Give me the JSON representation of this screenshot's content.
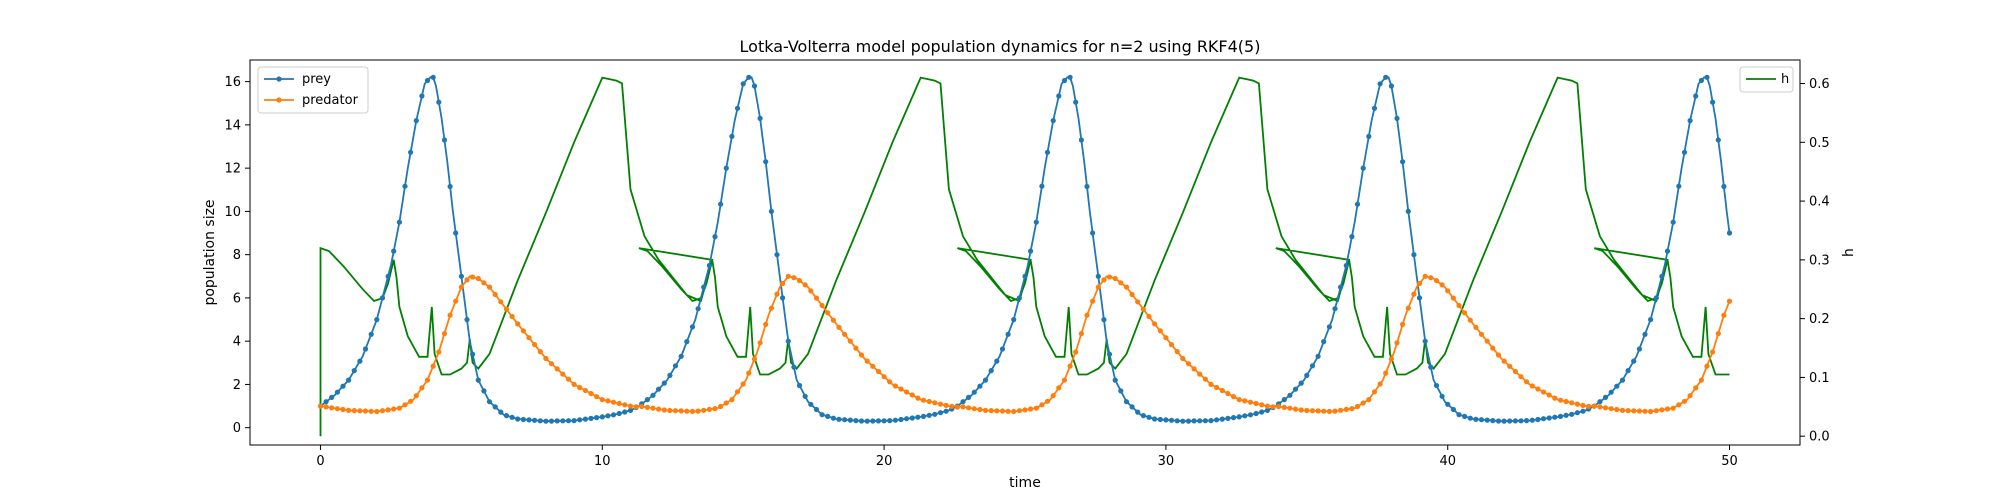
{
  "chart_data": {
    "type": "line",
    "title": "Lotka-Volterra model population dynamics for n=2 using RKF4(5)",
    "xlabel": "time",
    "ylabel": "population size",
    "y2label": "h",
    "xlim": [
      -2.5,
      52.5
    ],
    "ylim": [
      -0.8,
      17.0
    ],
    "y2lim": [
      -0.015,
      0.64
    ],
    "x_ticks": [
      0,
      10,
      20,
      30,
      40,
      50
    ],
    "y_ticks": [
      0,
      2,
      4,
      6,
      8,
      10,
      12,
      14,
      16
    ],
    "y2_ticks": [
      0.0,
      0.1,
      0.2,
      0.3,
      0.4,
      0.5,
      0.6
    ],
    "grid": false,
    "period": 11.3,
    "t_end": 50,
    "legend_left": {
      "placement": "upper-left",
      "entries": [
        "prey",
        "predator"
      ]
    },
    "legend_right": {
      "placement": "upper-right",
      "entries": [
        "h"
      ]
    },
    "series": [
      {
        "name": "prey",
        "color": "#1f77b4",
        "marker": "circle",
        "axis": "left",
        "cycle_t": [
          0.0,
          0.5,
          1.0,
          1.5,
          2.0,
          2.5,
          2.8,
          3.1,
          3.4,
          3.7,
          3.9,
          4.0,
          4.1,
          4.3,
          4.5,
          4.7,
          5.0,
          5.3,
          5.6,
          6.0,
          6.5,
          7.0,
          8.0,
          9.0,
          10.0,
          10.5,
          11.0,
          11.3
        ],
        "cycle_v": [
          1.0,
          1.5,
          2.2,
          3.3,
          5.0,
          7.5,
          9.5,
          12.0,
          14.2,
          15.9,
          16.2,
          16.2,
          15.8,
          14.3,
          12.3,
          10.0,
          7.0,
          4.0,
          2.2,
          1.2,
          0.6,
          0.4,
          0.3,
          0.33,
          0.5,
          0.62,
          0.8,
          1.0
        ]
      },
      {
        "name": "predator",
        "color": "#ff7f0e",
        "marker": "circle",
        "axis": "left",
        "cycle_t": [
          0.0,
          1.0,
          2.0,
          2.8,
          3.3,
          3.8,
          4.2,
          4.6,
          5.0,
          5.3,
          5.6,
          6.0,
          7.0,
          8.0,
          9.0,
          10.0,
          11.0,
          11.3
        ],
        "cycle_v": [
          1.0,
          0.8,
          0.75,
          0.9,
          1.3,
          2.2,
          3.5,
          5.2,
          6.5,
          7.0,
          6.9,
          6.5,
          4.8,
          3.2,
          2.0,
          1.3,
          1.0,
          0.95
        ]
      },
      {
        "name": "h",
        "color": "#008000",
        "marker": "none",
        "axis": "right",
        "points": [
          [
            0.0,
            0.0
          ],
          [
            0.0,
            0.32
          ],
          [
            0.3,
            0.315
          ],
          [
            0.8,
            0.29
          ],
          [
            1.5,
            0.25
          ],
          [
            1.9,
            0.23
          ],
          [
            2.2,
            0.235
          ],
          [
            2.4,
            0.26
          ],
          [
            2.6,
            0.3
          ],
          [
            2.7,
            0.27
          ],
          [
            2.8,
            0.22
          ],
          [
            3.1,
            0.17
          ],
          [
            3.5,
            0.135
          ],
          [
            3.8,
            0.135
          ],
          [
            3.95,
            0.22
          ],
          [
            4.05,
            0.14
          ],
          [
            4.3,
            0.105
          ],
          [
            4.6,
            0.105
          ],
          [
            5.0,
            0.115
          ],
          [
            5.2,
            0.125
          ],
          [
            5.3,
            0.165
          ],
          [
            5.4,
            0.125
          ],
          [
            5.6,
            0.115
          ],
          [
            6.0,
            0.14
          ],
          [
            7.0,
            0.265
          ],
          [
            8.0,
            0.38
          ],
          [
            9.0,
            0.5
          ],
          [
            10.0,
            0.61
          ],
          [
            10.5,
            0.605
          ],
          [
            10.7,
            0.6
          ],
          [
            11.0,
            0.42
          ],
          [
            11.5,
            0.34
          ],
          [
            12.0,
            0.3
          ],
          [
            13.0,
            0.24
          ],
          [
            13.5,
            0.23
          ],
          [
            13.9,
            0.3
          ]
        ]
      }
    ]
  }
}
